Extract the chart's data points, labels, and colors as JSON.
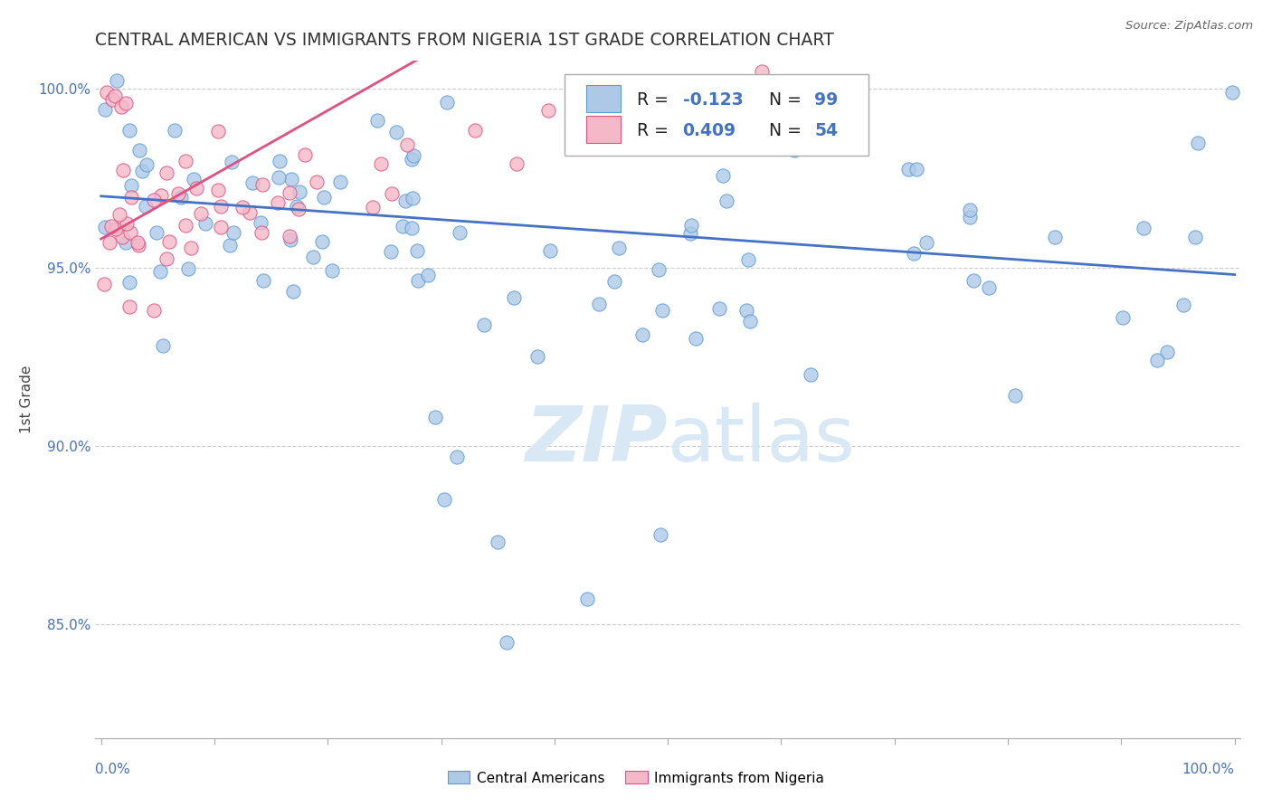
{
  "title": "CENTRAL AMERICAN VS IMMIGRANTS FROM NIGERIA 1ST GRADE CORRELATION CHART",
  "source": "Source: ZipAtlas.com",
  "ylabel": "1st Grade",
  "ylim": [
    0.818,
    1.008
  ],
  "yticks": [
    0.85,
    0.9,
    0.95,
    1.0
  ],
  "ytick_labels": [
    "85.0%",
    "90.0%",
    "95.0%",
    "100.0%"
  ],
  "xlim": [
    -0.005,
    1.005
  ],
  "xtick_left": "0.0%",
  "xtick_right": "100.0%",
  "r_blue": "-0.123",
  "n_blue": "99",
  "r_pink": "0.409",
  "n_pink": "54",
  "color_blue_fill": "#aec9e8",
  "color_blue_edge": "#5b9bd5",
  "color_pink_fill": "#f4b8c8",
  "color_pink_edge": "#e05080",
  "color_line_blue": "#4472c4",
  "color_line_pink": "#e05080",
  "color_ytick": "#4472c4",
  "watermark_color": "#d8e8f4",
  "legend_label_blue": "Central Americans",
  "legend_label_pink": "Immigrants from Nigeria",
  "legend_val_color": "#4472c4",
  "legend_text_color": "#222222"
}
